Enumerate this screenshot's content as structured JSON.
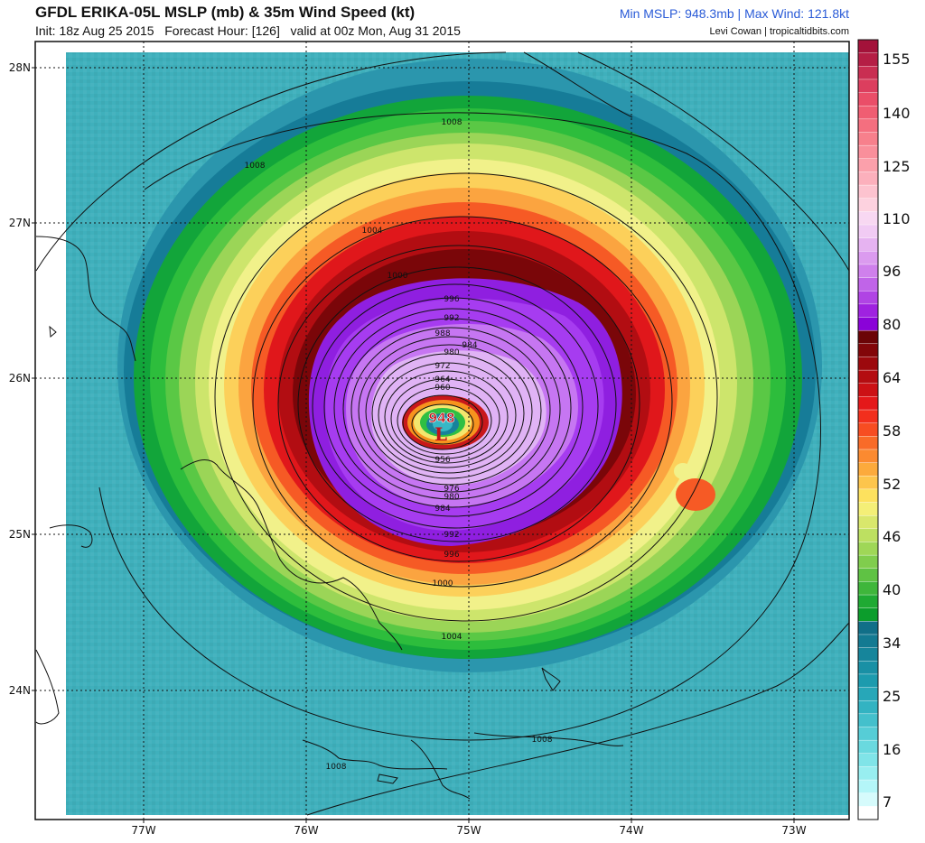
{
  "header": {
    "title": "GFDL ERIKA-05L MSLP (mb) & 35m Wind Speed (kt)",
    "init": "Init: 18z Aug 25 2015",
    "forecast_hour": "Forecast Hour: [126]",
    "valid": "valid at 00z Mon, Aug 31 2015",
    "stats": "Min MSLP: 948.3mb  |  Max Wind: 121.8kt",
    "credit": "Levi Cowan | tropicaltidbits.com"
  },
  "axes": {
    "lat_labels": [
      "28N",
      "27N",
      "26N",
      "25N",
      "24N"
    ],
    "lon_labels": [
      "77W",
      "76W",
      "75W",
      "74W",
      "73W"
    ]
  },
  "colorbar": {
    "labels": [
      "155",
      "140",
      "125",
      "110",
      "96",
      "80",
      "64",
      "58",
      "52",
      "46",
      "40",
      "34",
      "25",
      "16",
      "7"
    ]
  },
  "center": {
    "pressure": "948",
    "symbol": "L"
  },
  "isobar_labels": [
    "1008",
    "1008",
    "1008",
    "1008",
    "1004",
    "1004",
    "1000",
    "1000",
    "996",
    "996",
    "992",
    "992",
    "988",
    "984",
    "984",
    "980",
    "980",
    "976",
    "972",
    "964",
    "960",
    "956"
  ]
}
